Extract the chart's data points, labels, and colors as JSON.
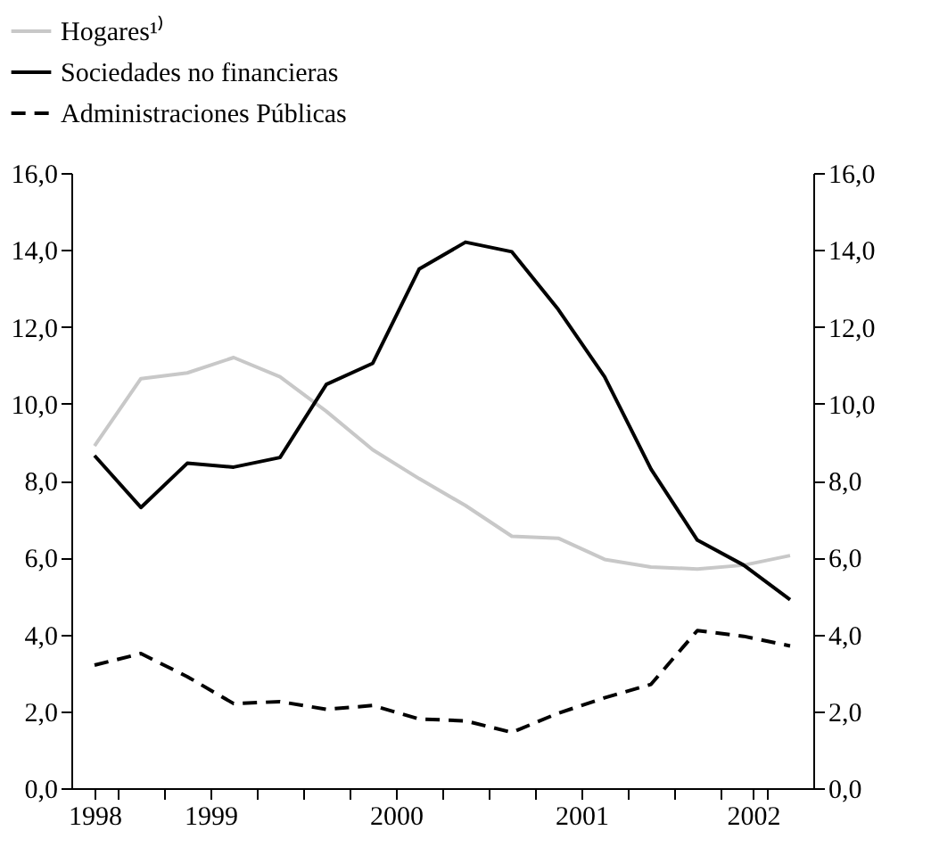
{
  "chart_data": {
    "type": "line",
    "x": [
      1998.375,
      1998.625,
      1998.875,
      1999.125,
      1999.375,
      1999.625,
      1999.875,
      2000.125,
      2000.375,
      2000.625,
      2000.875,
      2001.125,
      2001.375,
      2001.625,
      2001.875,
      2002.125
    ],
    "series": [
      {
        "name": "Hogares¹⁾",
        "color": "#c8c8c8",
        "line_style": "solid",
        "values": [
          8.9,
          10.65,
          10.8,
          11.2,
          10.7,
          9.8,
          8.8,
          8.05,
          7.35,
          6.55,
          6.5,
          5.95,
          5.75,
          5.7,
          5.8,
          6.05
        ]
      },
      {
        "name": "Sociedades no financieras",
        "color": "#000000",
        "line_style": "solid",
        "values": [
          8.65,
          7.3,
          8.45,
          8.35,
          8.6,
          10.5,
          11.05,
          13.5,
          14.2,
          13.95,
          12.45,
          10.7,
          8.3,
          6.45,
          5.8,
          4.9
        ]
      },
      {
        "name": "Administraciones Públicas",
        "color": "#000000",
        "line_style": "dashed",
        "values": [
          3.2,
          3.5,
          2.9,
          2.2,
          2.25,
          2.05,
          2.15,
          1.8,
          1.75,
          1.45,
          1.95,
          2.35,
          2.7,
          4.1,
          3.95,
          3.7
        ]
      }
    ],
    "xlim": [
      1998.25,
      2002.25
    ],
    "xticks": [
      {
        "value": 1998.375,
        "label": "1998"
      },
      {
        "value": 1998.5,
        "label": null
      },
      {
        "value": 1998.75,
        "label": null
      },
      1999,
      {
        "value": 1999.25,
        "label": null
      },
      {
        "value": 1999.5,
        "label": null
      },
      {
        "value": 1999.75,
        "label": null
      },
      2000,
      {
        "value": 2000.25,
        "label": null
      },
      {
        "value": 2000.5,
        "label": null
      },
      {
        "value": 2000.75,
        "label": null
      },
      2001,
      {
        "value": 2001.25,
        "label": null
      },
      {
        "value": 2001.5,
        "label": null
      },
      {
        "value": 2001.75,
        "label": null
      },
      {
        "value": 2001.925,
        "label": "2002"
      },
      {
        "value": 2002,
        "label": null
      }
    ],
    "ylim": [
      0,
      16
    ],
    "yticks": [
      {
        "value": 0,
        "label": "0,0"
      },
      {
        "value": 2,
        "label": "2,0"
      },
      {
        "value": 4,
        "label": "4,0"
      },
      {
        "value": 6,
        "label": "6,0"
      },
      {
        "value": 8,
        "label": "8,0"
      },
      {
        "value": 10,
        "label": "10,0"
      },
      {
        "value": 12,
        "label": "12,0"
      },
      {
        "value": 14,
        "label": "14,0"
      },
      {
        "value": 16,
        "label": "16,0"
      }
    ],
    "y2lim": [
      0,
      16
    ],
    "y2ticks": [
      {
        "value": 0,
        "label": "0,0"
      },
      {
        "value": 2,
        "label": "2,0"
      },
      {
        "value": 4,
        "label": "4,0"
      },
      {
        "value": 6,
        "label": "6,0"
      },
      {
        "value": 8,
        "label": "8,0"
      },
      {
        "value": 10,
        "label": "10,0"
      },
      {
        "value": 12,
        "label": "12,0"
      },
      {
        "value": 14,
        "label": "14,0"
      },
      {
        "value": 16,
        "label": "16,0"
      }
    ],
    "grid": false,
    "legend": "top left"
  }
}
